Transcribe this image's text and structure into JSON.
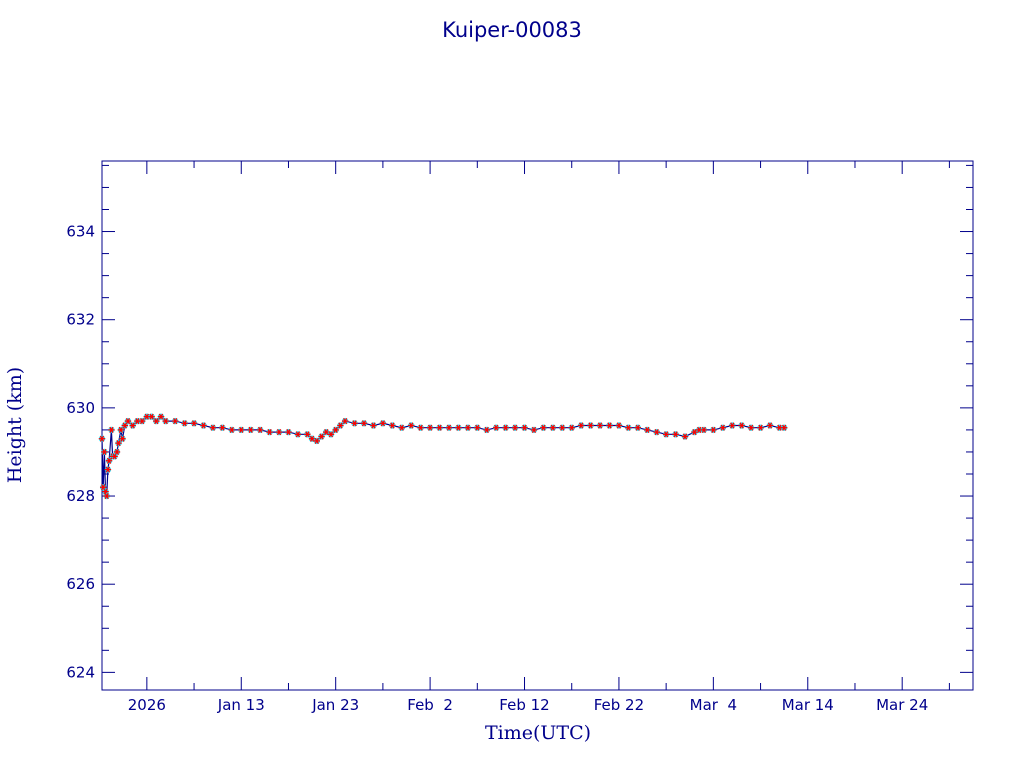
{
  "colors": {
    "axis": "#00008b",
    "line": "#00008b",
    "marker_red": "#ff0000",
    "marker_cyan": "#00e5ff",
    "background": "#ffffff"
  },
  "chart_data": {
    "type": "line",
    "title": "Kuiper-00083",
    "xlabel": "Time(UTC)",
    "ylabel": "Height (km)",
    "ylim": [
      623.6,
      635.6
    ],
    "xlim": [
      "2025-12-29T06:00",
      "2026-03-31T12:00"
    ],
    "x_ticks": [
      {
        "date": "2026-01-03",
        "label": "2026"
      },
      {
        "date": "2026-01-13",
        "label": "Jan 13"
      },
      {
        "date": "2026-01-23",
        "label": "Jan 23"
      },
      {
        "date": "2026-02-02",
        "label": "Feb  2"
      },
      {
        "date": "2026-02-12",
        "label": "Feb 12"
      },
      {
        "date": "2026-02-22",
        "label": "Feb 22"
      },
      {
        "date": "2026-03-04",
        "label": "Mar  4"
      },
      {
        "date": "2026-03-14",
        "label": "Mar 14"
      },
      {
        "date": "2026-03-24",
        "label": "Mar 24"
      }
    ],
    "y_ticks": [
      624,
      626,
      628,
      630,
      632,
      634
    ],
    "grid": false,
    "series": [
      {
        "marker": "star",
        "points": [
          [
            "2025-12-29T06:00",
            629.3
          ],
          [
            "2025-12-29T09:00",
            628.2
          ],
          [
            "2025-12-29T12:00",
            629.0
          ],
          [
            "2025-12-29T15:00",
            628.1
          ],
          [
            "2025-12-29T18:00",
            628.0
          ],
          [
            "2025-12-29T21:00",
            628.6
          ],
          [
            "2025-12-30T00:00",
            628.8
          ],
          [
            "2025-12-30T06:00",
            629.5
          ],
          [
            "2025-12-30T09:00",
            628.9
          ],
          [
            "2025-12-30T14:00",
            628.9
          ],
          [
            "2025-12-30T20:00",
            629.0
          ],
          [
            "2025-12-31T00:00",
            629.2
          ],
          [
            "2025-12-31T06:00",
            629.5
          ],
          [
            "2025-12-31T10:00",
            629.3
          ],
          [
            "2025-12-31T16:00",
            629.6
          ],
          [
            "2026-01-01T00:00",
            629.7
          ],
          [
            "2026-01-01T12:00",
            629.6
          ],
          [
            "2026-01-02T00:00",
            629.7
          ],
          [
            "2026-01-02T12:00",
            629.7
          ],
          [
            "2026-01-03T00:00",
            629.8
          ],
          [
            "2026-01-03T12:00",
            629.8
          ],
          [
            "2026-01-04T00:00",
            629.7
          ],
          [
            "2026-01-04T12:00",
            629.8
          ],
          [
            "2026-01-05T00:00",
            629.7
          ],
          [
            "2026-01-06T00:00",
            629.7
          ],
          [
            "2026-01-07T00:00",
            629.65
          ],
          [
            "2026-01-08T00:00",
            629.65
          ],
          [
            "2026-01-09T00:00",
            629.6
          ],
          [
            "2026-01-10T00:00",
            629.55
          ],
          [
            "2026-01-11T00:00",
            629.55
          ],
          [
            "2026-01-12T00:00",
            629.5
          ],
          [
            "2026-01-13T00:00",
            629.5
          ],
          [
            "2026-01-14T00:00",
            629.5
          ],
          [
            "2026-01-15T00:00",
            629.5
          ],
          [
            "2026-01-16T00:00",
            629.45
          ],
          [
            "2026-01-17T00:00",
            629.45
          ],
          [
            "2026-01-18T00:00",
            629.45
          ],
          [
            "2026-01-19T00:00",
            629.4
          ],
          [
            "2026-01-20T00:00",
            629.4
          ],
          [
            "2026-01-20T12:00",
            629.3
          ],
          [
            "2026-01-21T00:00",
            629.25
          ],
          [
            "2026-01-21T12:00",
            629.35
          ],
          [
            "2026-01-22T00:00",
            629.45
          ],
          [
            "2026-01-22T12:00",
            629.4
          ],
          [
            "2026-01-23T00:00",
            629.5
          ],
          [
            "2026-01-23T12:00",
            629.6
          ],
          [
            "2026-01-24T00:00",
            629.7
          ],
          [
            "2026-01-25T00:00",
            629.65
          ],
          [
            "2026-01-26T00:00",
            629.65
          ],
          [
            "2026-01-27T00:00",
            629.6
          ],
          [
            "2026-01-28T00:00",
            629.65
          ],
          [
            "2026-01-29T00:00",
            629.6
          ],
          [
            "2026-01-30T00:00",
            629.55
          ],
          [
            "2026-01-31T00:00",
            629.6
          ],
          [
            "2026-02-01T00:00",
            629.55
          ],
          [
            "2026-02-02T00:00",
            629.55
          ],
          [
            "2026-02-03T00:00",
            629.55
          ],
          [
            "2026-02-04T00:00",
            629.55
          ],
          [
            "2026-02-05T00:00",
            629.55
          ],
          [
            "2026-02-06T00:00",
            629.55
          ],
          [
            "2026-02-07T00:00",
            629.55
          ],
          [
            "2026-02-08T00:00",
            629.5
          ],
          [
            "2026-02-09T00:00",
            629.55
          ],
          [
            "2026-02-10T00:00",
            629.55
          ],
          [
            "2026-02-11T00:00",
            629.55
          ],
          [
            "2026-02-12T00:00",
            629.55
          ],
          [
            "2026-02-13T00:00",
            629.5
          ],
          [
            "2026-02-14T00:00",
            629.55
          ],
          [
            "2026-02-15T00:00",
            629.55
          ],
          [
            "2026-02-16T00:00",
            629.55
          ],
          [
            "2026-02-17T00:00",
            629.55
          ],
          [
            "2026-02-18T00:00",
            629.6
          ],
          [
            "2026-02-19T00:00",
            629.6
          ],
          [
            "2026-02-20T00:00",
            629.6
          ],
          [
            "2026-02-21T00:00",
            629.6
          ],
          [
            "2026-02-22T00:00",
            629.6
          ],
          [
            "2026-02-23T00:00",
            629.55
          ],
          [
            "2026-02-24T00:00",
            629.55
          ],
          [
            "2026-02-25T00:00",
            629.5
          ],
          [
            "2026-02-26T00:00",
            629.45
          ],
          [
            "2026-02-27T00:00",
            629.4
          ],
          [
            "2026-02-28T00:00",
            629.4
          ],
          [
            "2026-03-01T00:00",
            629.35
          ],
          [
            "2026-03-02T00:00",
            629.45
          ],
          [
            "2026-03-02T12:00",
            629.5
          ],
          [
            "2026-03-03T00:00",
            629.5
          ],
          [
            "2026-03-04T00:00",
            629.5
          ],
          [
            "2026-03-05T00:00",
            629.55
          ],
          [
            "2026-03-06T00:00",
            629.6
          ],
          [
            "2026-03-07T00:00",
            629.6
          ],
          [
            "2026-03-08T00:00",
            629.55
          ],
          [
            "2026-03-09T00:00",
            629.55
          ],
          [
            "2026-03-10T00:00",
            629.6
          ],
          [
            "2026-03-11T00:00",
            629.55
          ],
          [
            "2026-03-11T12:00",
            629.55
          ]
        ]
      }
    ]
  }
}
